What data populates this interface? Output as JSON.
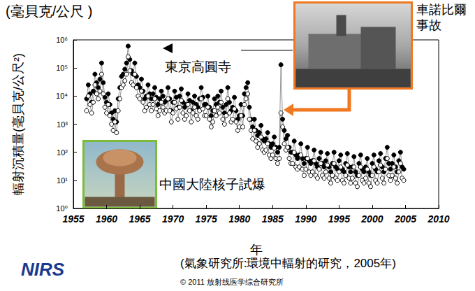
{
  "chart_data": {
    "type": "line",
    "title": "(毫貝克/公尺 )",
    "xlabel": "年",
    "ylabel": "輻射沉積量(毫貝克/公尺²)",
    "annotations": [
      "東京高圓寺",
      "中國大陸核子試爆",
      "車諾比爾事故"
    ],
    "source": "(氣象研究所:環境中輻射的研究，2005年)",
    "credit": "© 2011 放射线医学综合研究所",
    "logo": "NIRS",
    "log": "y",
    "grid": false,
    "xlim": [
      1955,
      2010
    ],
    "xticks": [
      1955,
      1960,
      1965,
      1970,
      1975,
      1980,
      1985,
      1990,
      1995,
      2000,
      2005,
      2010
    ],
    "ylim": [
      1,
      1000000
    ],
    "yticks": [
      {
        "value": 1,
        "label": "10⁰"
      },
      {
        "value": 10,
        "label": "10¹"
      },
      {
        "value": 100,
        "label": "10²"
      },
      {
        "value": 1000,
        "label": "10³"
      },
      {
        "value": 10000,
        "label": "10⁴"
      },
      {
        "value": 100000,
        "label": "10⁵"
      },
      {
        "value": 1000000,
        "label": "10⁶"
      }
    ],
    "x": [
      1957,
      1957.25,
      1957.5,
      1957.75,
      1958,
      1958.25,
      1958.5,
      1958.75,
      1959,
      1959.25,
      1959.5,
      1959.75,
      1960,
      1960.25,
      1960.5,
      1960.75,
      1961,
      1961.25,
      1961.5,
      1961.75,
      1962,
      1962.25,
      1962.5,
      1962.75,
      1963,
      1963.25,
      1963.5,
      1963.75,
      1964,
      1964.25,
      1964.5,
      1964.75,
      1965,
      1965.25,
      1965.5,
      1965.75,
      1966,
      1966.25,
      1966.5,
      1966.75,
      1967,
      1967.25,
      1967.5,
      1967.75,
      1968,
      1968.25,
      1968.5,
      1968.75,
      1969,
      1969.25,
      1969.5,
      1969.75,
      1970,
      1970.25,
      1970.5,
      1970.75,
      1971,
      1971.25,
      1971.5,
      1971.75,
      1972,
      1972.25,
      1972.5,
      1972.75,
      1973,
      1973.25,
      1973.5,
      1973.75,
      1974,
      1974.25,
      1974.5,
      1974.75,
      1975,
      1975.25,
      1975.5,
      1975.75,
      1976,
      1976.25,
      1976.5,
      1976.75,
      1977,
      1977.25,
      1977.5,
      1977.75,
      1978,
      1978.25,
      1978.5,
      1978.75,
      1979,
      1979.25,
      1979.5,
      1979.75,
      1980,
      1980.25,
      1980.5,
      1980.75,
      1981,
      1981.25,
      1981.5,
      1981.75,
      1982,
      1982.25,
      1982.5,
      1982.75,
      1983,
      1983.25,
      1983.5,
      1983.75,
      1984,
      1984.25,
      1984.5,
      1984.75,
      1985,
      1985.25,
      1985.5,
      1985.75,
      1986,
      1986.25,
      1986.5,
      1986.75,
      1987,
      1987.25,
      1987.5,
      1987.75,
      1988,
      1988.25,
      1988.5,
      1988.75,
      1989,
      1989.25,
      1989.5,
      1989.75,
      1990,
      1990.25,
      1990.5,
      1990.75,
      1991,
      1991.25,
      1991.5,
      1991.75,
      1992,
      1992.25,
      1992.5,
      1992.75,
      1993,
      1993.25,
      1993.5,
      1993.75,
      1994,
      1994.25,
      1994.5,
      1994.75,
      1995,
      1995.25,
      1995.5,
      1995.75,
      1996,
      1996.25,
      1996.5,
      1996.75,
      1997,
      1997.25,
      1997.5,
      1997.75,
      1998,
      1998.25,
      1998.5,
      1998.75,
      1999,
      1999.25,
      1999.5,
      1999.75,
      2000,
      2000.25,
      2000.5,
      2000.75,
      2001,
      2001.25,
      2001.5,
      2001.75,
      2002,
      2002.25,
      2002.5,
      2002.75,
      2003,
      2003.25,
      2003.5,
      2003.75,
      2004,
      2004.25,
      2004.5,
      2004.75
    ],
    "series": [
      {
        "color": "#000000",
        "marker": "filled",
        "values": [
          8000,
          25000,
          12000,
          6000,
          15000,
          60000,
          30000,
          20000,
          40000,
          150000,
          30000,
          9000,
          6000,
          12000,
          5000,
          2500,
          1500,
          3000,
          1200,
          8000,
          20000,
          50000,
          60000,
          90000,
          150000,
          600000,
          200000,
          80000,
          60000,
          150000,
          50000,
          25000,
          20000,
          40000,
          15000,
          8000,
          10000,
          25000,
          12000,
          8000,
          12000,
          20000,
          9000,
          5000,
          8000,
          15000,
          10000,
          6000,
          7000,
          20000,
          8000,
          3000,
          6000,
          15000,
          9000,
          4000,
          10000,
          18000,
          6000,
          4000,
          5000,
          12000,
          7000,
          3000,
          6000,
          10000,
          5000,
          4000,
          8000,
          20000,
          9000,
          5000,
          5000,
          10000,
          4000,
          2000,
          3000,
          8000,
          5000,
          10000,
          6000,
          15000,
          4000,
          2500,
          5000,
          20000,
          6000,
          3000,
          4000,
          9000,
          3000,
          1500,
          2000,
          5000,
          2000,
          12000,
          20000,
          30000,
          4000,
          1500,
          800,
          1500,
          600,
          400,
          500,
          900,
          300,
          250,
          300,
          500,
          200,
          150,
          200,
          350,
          150,
          100,
          150,
          130000,
          1500,
          600,
          300,
          400,
          150,
          100,
          100,
          250,
          80,
          60,
          80,
          200,
          60,
          40,
          60,
          150,
          50,
          40,
          50,
          120,
          40,
          30,
          60,
          100,
          40,
          30,
          50,
          90,
          30,
          20,
          40,
          100,
          30,
          25,
          50,
          80,
          25,
          20,
          40,
          90,
          30,
          20,
          30,
          70,
          20,
          15,
          40,
          80,
          25,
          20,
          30,
          60,
          20,
          15,
          40,
          80,
          25,
          20,
          50,
          90,
          30,
          20,
          60,
          150,
          40,
          25,
          40,
          80,
          30,
          20,
          50,
          100,
          30,
          25
        ]
      },
      {
        "color": "#000000",
        "marker": "open",
        "values": [
          3000,
          10000,
          5000,
          2500,
          6000,
          25000,
          12000,
          8000,
          15000,
          60000,
          12000,
          4000,
          2500,
          5000,
          2000,
          1000,
          600,
          1200,
          500,
          3000,
          8000,
          20000,
          25000,
          35000,
          60000,
          250000,
          80000,
          30000,
          25000,
          60000,
          20000,
          10000,
          8000,
          15000,
          6000,
          3000,
          4000,
          10000,
          5000,
          3000,
          5000,
          8000,
          3500,
          2000,
          3000,
          6000,
          4000,
          2500,
          3000,
          8000,
          3000,
          1200,
          2500,
          6000,
          3500,
          1500,
          4000,
          7000,
          2500,
          1500,
          2000,
          5000,
          3000,
          1200,
          2500,
          4000,
          2000,
          1500,
          3000,
          8000,
          3500,
          2000,
          2000,
          4000,
          1500,
          800,
          1200,
          3000,
          2000,
          4000,
          2500,
          6000,
          1500,
          1000,
          2000,
          8000,
          2500,
          1200,
          1500,
          3500,
          1200,
          600,
          800,
          2000,
          800,
          5000,
          8000,
          12000,
          1500,
          600,
          300,
          600,
          250,
          150,
          200,
          350,
          120,
          100,
          120,
          200,
          80,
          60,
          80,
          140,
          60,
          40,
          60,
          2500,
          800,
          200,
          120,
          150,
          60,
          40,
          40,
          100,
          30,
          25,
          30,
          80,
          25,
          15,
          25,
          60,
          20,
          15,
          20,
          50,
          15,
          12,
          25,
          40,
          15,
          12,
          20,
          35,
          12,
          8,
          15,
          40,
          12,
          10,
          20,
          30,
          10,
          8,
          15,
          35,
          12,
          8,
          12,
          30,
          8,
          6,
          15,
          30,
          10,
          8,
          12,
          25,
          8,
          6,
          15,
          30,
          10,
          8,
          20,
          35,
          12,
          8,
          25,
          60,
          15,
          10,
          15,
          30,
          12,
          8,
          20,
          40,
          12,
          10
        ]
      }
    ]
  }
}
